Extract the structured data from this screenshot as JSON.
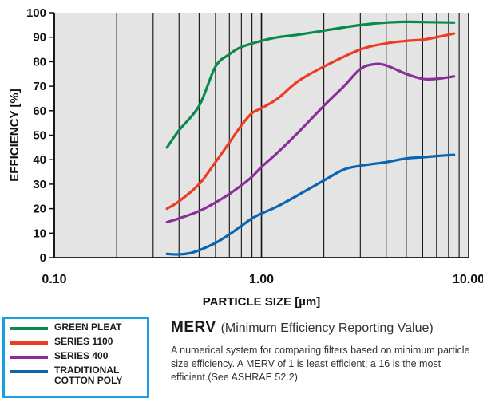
{
  "chart_data": {
    "type": "line",
    "xlabel": "PARTICLE SIZE [µm]",
    "ylabel": "EFFICIENCY [%]",
    "xscale": "log",
    "xlim": [
      0.1,
      10
    ],
    "ylim": [
      0,
      100
    ],
    "x_tick_labels": [
      "0.10",
      "1.00",
      "10.00"
    ],
    "y_ticks": [
      0,
      10,
      20,
      30,
      40,
      50,
      60,
      70,
      80,
      90,
      100
    ],
    "grid": "vertical log gridlines",
    "series": [
      {
        "name": "GREEN PLEAT",
        "color": "#0a8a4a",
        "x": [
          0.35,
          0.4,
          0.5,
          0.6,
          0.7,
          0.8,
          1.0,
          1.2,
          1.5,
          2.0,
          3.0,
          4.0,
          5.0,
          6.0,
          8.5
        ],
        "y": [
          45,
          52,
          62,
          78,
          83,
          86,
          88.5,
          90,
          91,
          92.7,
          95,
          96,
          96.3,
          96.2,
          96
        ]
      },
      {
        "name": "SERIES 1100",
        "color": "#ee3b24",
        "x": [
          0.35,
          0.4,
          0.5,
          0.6,
          0.7,
          0.8,
          0.9,
          1.0,
          1.2,
          1.5,
          2.0,
          3.0,
          4.0,
          5.0,
          6.0,
          7.0,
          8.5
        ],
        "y": [
          20,
          23,
          30,
          39,
          47,
          54,
          59,
          61,
          65,
          72,
          78,
          85,
          87.5,
          88.5,
          89,
          90,
          91.5
        ]
      },
      {
        "name": "SERIES 400",
        "color": "#8a2e9a",
        "x": [
          0.35,
          0.4,
          0.5,
          0.6,
          0.7,
          0.8,
          0.9,
          1.0,
          1.2,
          1.5,
          2.0,
          2.5,
          3.0,
          3.5,
          4.0,
          5.0,
          6.0,
          7.0,
          8.5
        ],
        "y": [
          14.5,
          16,
          19,
          22.5,
          26,
          29.5,
          33,
          37,
          43,
          51,
          62,
          70,
          77,
          79,
          78.5,
          75,
          73,
          73,
          74
        ]
      },
      {
        "name": "TRADITIONAL COTTON POLY",
        "color": "#0a64b0",
        "x": [
          0.35,
          0.4,
          0.45,
          0.5,
          0.6,
          0.7,
          0.8,
          0.9,
          1.0,
          1.2,
          1.5,
          2.0,
          2.5,
          3.0,
          4.0,
          5.0,
          6.0,
          7.0,
          8.5
        ],
        "y": [
          1.5,
          1.3,
          1.8,
          3,
          6,
          9.5,
          13,
          16,
          18,
          21,
          25.5,
          31.5,
          36,
          37.5,
          39,
          40.5,
          41,
          41.5,
          42
        ]
      }
    ]
  },
  "legend": {
    "items": [
      {
        "label": "GREEN PLEAT",
        "color": "#0a8a4a"
      },
      {
        "label": "SERIES 1100",
        "color": "#ee3b24"
      },
      {
        "label": "SERIES 400",
        "color": "#8a2e9a"
      },
      {
        "label": "TRADITIONAL COTTON POLY",
        "color": "#0a64b0"
      }
    ]
  },
  "merv": {
    "abbr": "MERV",
    "full": "(Minimum Efficiency Reporting Value)",
    "description": "A numerical system for comparing filters based on minimum particle size efficiency. A MERV of 1 is least efficient; a 16 is the most efficient.(See ASHRAE 52.2)"
  }
}
